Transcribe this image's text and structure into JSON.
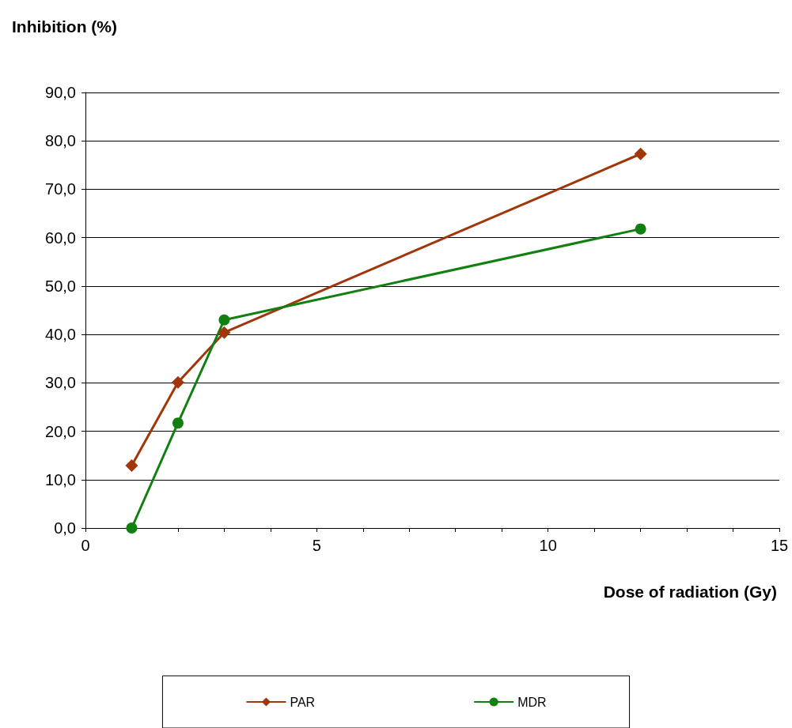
{
  "chart_data": {
    "type": "line",
    "ylabel": "Inhibition (%)",
    "xlabel": "Dose of radiation (Gy)",
    "xlim": [
      0,
      15
    ],
    "xticks": [
      0,
      {
        "value": 1,
        "label": null
      },
      {
        "value": 2,
        "label": null
      },
      {
        "value": 3,
        "label": null
      },
      {
        "value": 4,
        "label": null
      },
      5,
      {
        "value": 6,
        "label": null
      },
      {
        "value": 7,
        "label": null
      },
      {
        "value": 8,
        "label": null
      },
      {
        "value": 9,
        "label": null
      },
      10,
      {
        "value": 11,
        "label": null
      },
      {
        "value": 12,
        "label": null
      },
      {
        "value": 13,
        "label": null
      },
      {
        "value": 14,
        "label": null
      },
      15
    ],
    "ylim": [
      0,
      90
    ],
    "yticks": [
      {
        "value": 0,
        "label": "0,0"
      },
      {
        "value": 10,
        "label": "10,0"
      },
      {
        "value": 20,
        "label": "20,0"
      },
      {
        "value": 30,
        "label": "30,0"
      },
      {
        "value": 40,
        "label": "40,0"
      },
      {
        "value": 50,
        "label": "50,0"
      },
      {
        "value": 60,
        "label": "60,0"
      },
      {
        "value": 70,
        "label": "70,0"
      },
      {
        "value": 80,
        "label": "80,0"
      },
      {
        "value": 90,
        "label": "90,0"
      }
    ],
    "x": [
      1,
      2,
      3,
      12
    ],
    "series": [
      {
        "name": "PAR",
        "color": "#a0360a",
        "marker": "diamond",
        "values": [
          12.9,
          30.1,
          40.4,
          77.3
        ]
      },
      {
        "name": "MDR",
        "color": "#118011",
        "marker": "circle",
        "values": [
          0,
          21.7,
          43.0,
          61.8
        ]
      }
    ],
    "grid": "y",
    "legend": "bottom",
    "line_style": "solid"
  }
}
